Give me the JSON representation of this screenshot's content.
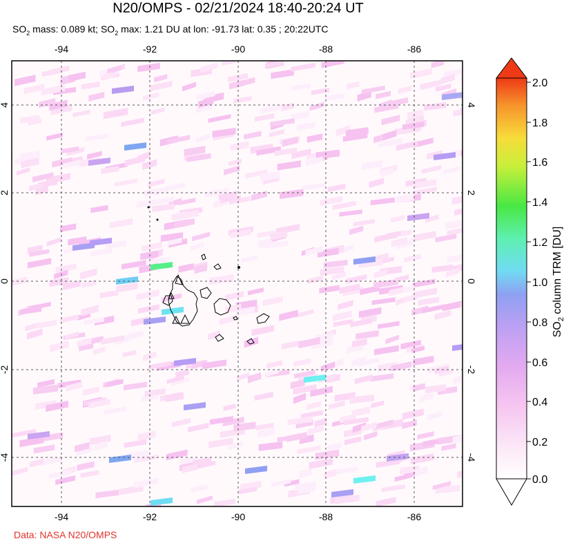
{
  "title": "N20/OMPS - 02/21/2024 18:40-20:24 UT",
  "subtitle": {
    "so2_mass_label": "SO",
    "so2_sub": "2",
    "mass_text": " mass: 0.089 kt; SO",
    "max_text": " max: 1.21 DU at lon: -91.73 lat: 0.35 ; 20:22UTC"
  },
  "credit": "Data: NASA N20/OMPS",
  "map": {
    "lon_ticks": [
      "-94",
      "-92",
      "-90",
      "-88",
      "-86"
    ],
    "lat_ticks": [
      "4",
      "2",
      "0",
      "-2",
      "-4"
    ],
    "lon_range": [
      -95.1,
      -84.9
    ],
    "lat_range": [
      -5.0,
      5.1
    ],
    "grid": "dotted",
    "region": "Galápagos Islands"
  },
  "colorbar": {
    "title_prefix": "SO",
    "title_sub": "2",
    "title_suffix": " column TRM [DU]",
    "labels": [
      "2.0",
      "1.8",
      "1.6",
      "1.4",
      "1.2",
      "1.0",
      "0.8",
      "0.6",
      "0.4",
      "0.2",
      "0.0"
    ],
    "range": [
      0.0,
      2.0
    ],
    "colors": [
      "#ffffff",
      "#f9c9f3",
      "#e4a8f0",
      "#b59cf4",
      "#7fa6f0",
      "#6ef0f0",
      "#55ef7a",
      "#47e83a",
      "#d8f13c",
      "#f8d83a",
      "#f8922a",
      "#ee3a16"
    ]
  }
}
